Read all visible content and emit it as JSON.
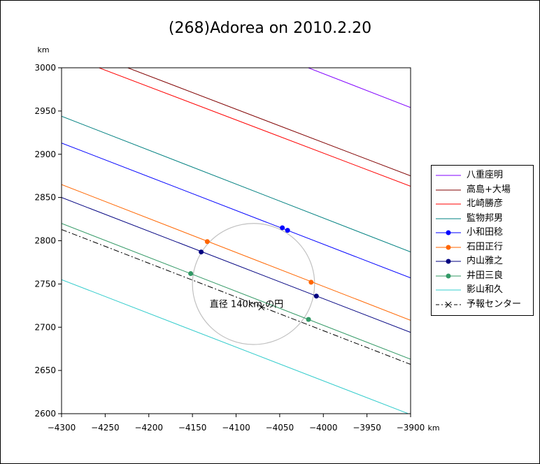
{
  "chart_data": {
    "type": "line",
    "title": "(268)Adorea on 2010.2.20",
    "x_unit": "km",
    "y_unit": "km",
    "xlim": [
      -4300,
      -3900
    ],
    "ylim": [
      2600,
      3000
    ],
    "x_ticks": [
      "-4300",
      "-4250",
      "-4200",
      "-4150",
      "-4100",
      "-4050",
      "-4000",
      "-3950",
      "-3900"
    ],
    "y_ticks": [
      "3000",
      "2950",
      "2900",
      "2850",
      "2800",
      "2750",
      "2700",
      "2650",
      "2600"
    ],
    "circle": {
      "label": "直径 140km の円",
      "center": [
        -4080,
        2750
      ],
      "diameter": 140
    },
    "series": [
      {
        "name": "八重座明",
        "color": "#8000ff",
        "points": [
          [
            -4025,
            3003
          ],
          [
            -3900,
            2954
          ]
        ]
      },
      {
        "name": "高島+大場",
        "color": "#800000",
        "points": [
          [
            -4232,
            3003
          ],
          [
            -3900,
            2875
          ]
        ]
      },
      {
        "name": "北崎勝彦",
        "color": "#ff0000",
        "points": [
          [
            -4265,
            3003
          ],
          [
            -3900,
            2863
          ]
        ]
      },
      {
        "name": "監物邦男",
        "color": "#008080",
        "points": [
          [
            -4300,
            2944
          ],
          [
            -3900,
            2787
          ]
        ]
      },
      {
        "name": "小和田稔",
        "color": "#0000ff",
        "points": [
          [
            -4300,
            2913
          ],
          [
            -3900,
            2757
          ]
        ],
        "markers": [
          [
            -4047,
            2815
          ],
          [
            -4041,
            2812
          ]
        ]
      },
      {
        "name": "石田正行",
        "color": "#ff6600",
        "points": [
          [
            -4300,
            2865
          ],
          [
            -3900,
            2708
          ]
        ],
        "markers": [
          [
            -4133,
            2799
          ],
          [
            -4014,
            2752
          ]
        ]
      },
      {
        "name": "内山雅之",
        "color": "#000080",
        "points": [
          [
            -4300,
            2850
          ],
          [
            -3900,
            2694
          ]
        ],
        "markers": [
          [
            -4140,
            2787
          ],
          [
            -4008,
            2736
          ]
        ]
      },
      {
        "name": "井田三良",
        "color": "#339966",
        "points": [
          [
            -4300,
            2820
          ],
          [
            -3900,
            2663
          ]
        ],
        "markers": [
          [
            -4152,
            2762
          ],
          [
            -4017,
            2709
          ]
        ]
      },
      {
        "name": "影山和久",
        "color": "#33cccc",
        "points": [
          [
            -4300,
            2755
          ],
          [
            -3900,
            2599
          ]
        ]
      },
      {
        "name": "予報センター",
        "color": "#000000",
        "dashed": true,
        "points": [
          [
            -4300,
            2813
          ],
          [
            -3900,
            2657
          ]
        ],
        "center_mark": [
          -4071,
          2723
        ]
      }
    ]
  }
}
